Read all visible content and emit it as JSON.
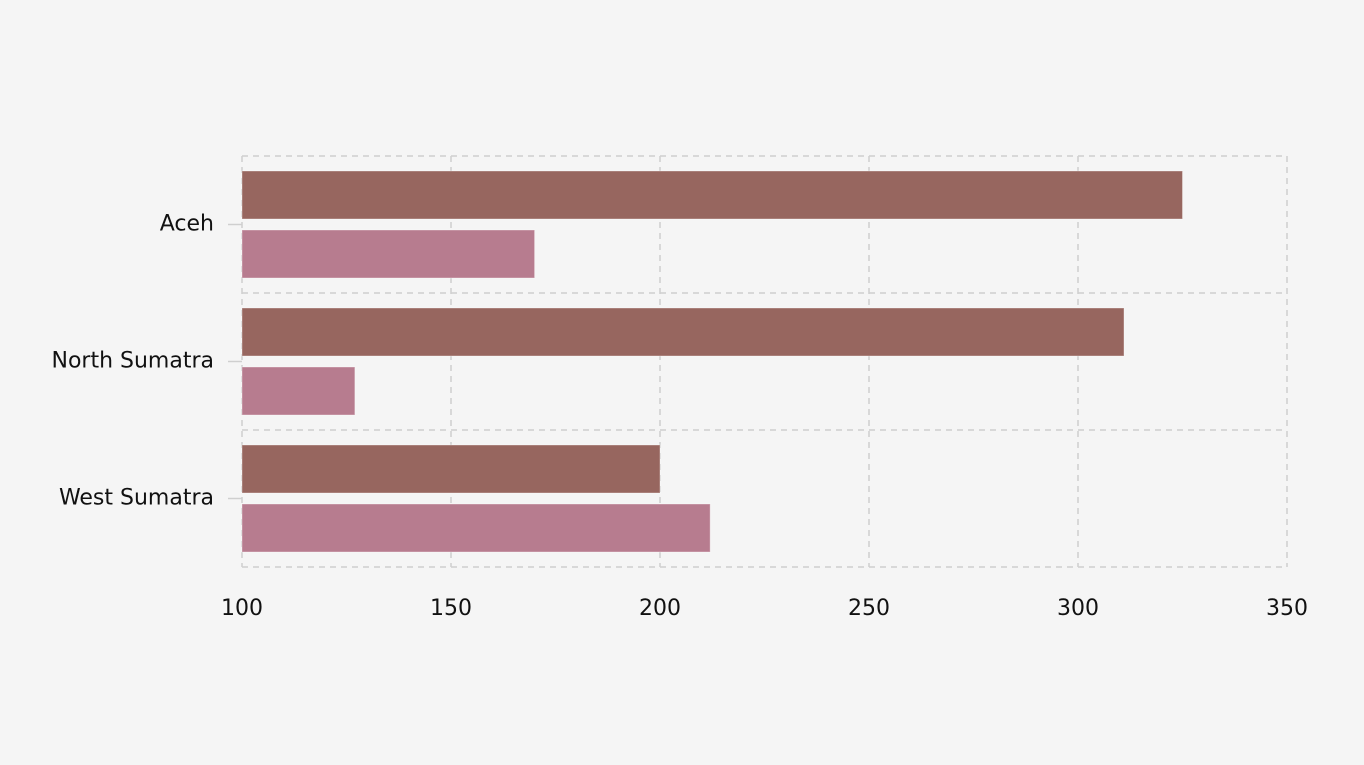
{
  "chart_data": {
    "type": "bar",
    "orientation": "horizontal",
    "categories": [
      "Aceh",
      "North Sumatra",
      "West Sumatra"
    ],
    "series": [
      {
        "values": [
          325,
          311,
          200
        ],
        "color": "#97665f"
      },
      {
        "values": [
          170,
          127,
          212
        ],
        "color": "#b77c8f"
      }
    ],
    "xlim": [
      100,
      350
    ],
    "xticks": [
      100,
      150,
      200,
      250,
      300,
      350
    ],
    "xtick_labels": [
      "100",
      "150",
      "200",
      "250",
      "300",
      "350"
    ],
    "grid": true,
    "title": "",
    "xlabel": "",
    "ylabel": ""
  }
}
